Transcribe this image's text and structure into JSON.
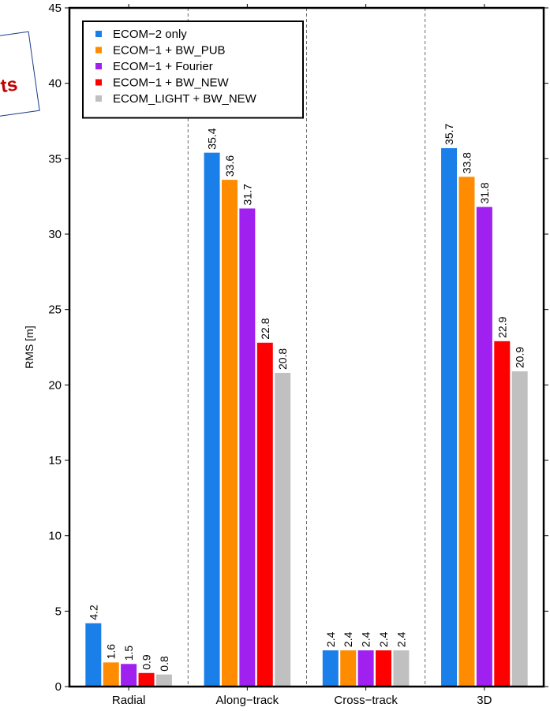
{
  "stamp": {
    "text": "ts"
  },
  "chart_data": {
    "type": "bar",
    "ylabel": "RMS [m]",
    "xlabel": "",
    "ylim": [
      0,
      45
    ],
    "yticks": [
      0,
      5,
      10,
      15,
      20,
      25,
      30,
      35,
      40,
      45
    ],
    "categories": [
      "Radial",
      "Along−track",
      "Cross−track",
      "3D"
    ],
    "legend_position": "top-left",
    "series": [
      {
        "name": "ECOM−2 only",
        "color": "#1a7fe8",
        "values": [
          4.2,
          35.4,
          2.4,
          35.7
        ],
        "labels": [
          "4.2",
          "35.4",
          "2.4",
          "35.7"
        ]
      },
      {
        "name": "ECOM−1 + BW_PUB",
        "color": "#ff8c00",
        "values": [
          1.6,
          33.6,
          2.4,
          33.8
        ],
        "labels": [
          "1.6",
          "33.6",
          "2.4",
          "33.8"
        ]
      },
      {
        "name": "ECOM−1 + Fourier",
        "color": "#a020f0",
        "values": [
          1.5,
          31.7,
          2.4,
          31.8
        ],
        "labels": [
          "1.5",
          "31.7",
          "2.4",
          "31.8"
        ]
      },
      {
        "name": "ECOM−1 + BW_NEW",
        "color": "#ff0000",
        "values": [
          0.9,
          22.8,
          2.4,
          22.9
        ],
        "labels": [
          "0.9",
          "22.8",
          "2.4",
          "22.9"
        ]
      },
      {
        "name": "ECOM_LIGHT + BW_NEW",
        "color": "#c0c0c0",
        "values": [
          0.8,
          20.8,
          2.4,
          20.9
        ],
        "labels": [
          "0.8",
          "20.8",
          "2.4",
          "20.9"
        ]
      }
    ]
  }
}
